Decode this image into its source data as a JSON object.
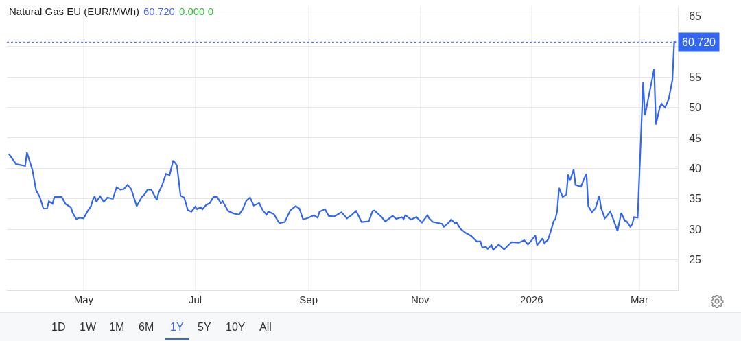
{
  "chart_data": {
    "type": "line",
    "title": "Natural Gas EU (EUR/MWh)",
    "annotations": [
      "60.720",
      "0.000 0",
      "1D",
      "1W",
      "1M",
      "6M",
      "1Y",
      "5Y",
      "10Y",
      "All"
    ],
    "x": [
      "2025-03-21",
      "2025-03-22",
      "2025-03-25",
      "2025-03-30",
      "2025-03-31",
      "2025-04-03",
      "2025-04-05",
      "2025-04-07",
      "2025-04-09",
      "2025-04-11",
      "2025-04-12",
      "2025-04-14",
      "2025-04-15",
      "2025-04-19",
      "2025-04-21",
      "2025-04-24",
      "2025-04-25",
      "2025-04-27",
      "2025-04-29",
      "2025-05-01",
      "2025-05-03",
      "2025-05-05",
      "2025-05-06",
      "2025-05-07",
      "2025-05-08",
      "2025-05-10",
      "2025-05-12",
      "2025-05-14",
      "2025-05-17",
      "2025-05-19",
      "2025-05-21",
      "2025-05-23",
      "2025-05-25",
      "2025-05-27",
      "2025-05-30",
      "2025-06-02",
      "2025-06-03",
      "2025-06-05",
      "2025-06-07",
      "2025-06-10",
      "2025-06-11",
      "2025-06-13",
      "2025-06-15",
      "2025-06-17",
      "2025-06-19",
      "2025-06-21",
      "2025-06-23",
      "2025-06-25",
      "2025-06-27",
      "2025-06-29",
      "2025-07-01",
      "2025-07-02",
      "2025-07-04",
      "2025-07-05",
      "2025-07-07",
      "2025-07-09",
      "2025-07-11",
      "2025-07-13",
      "2025-07-15",
      "2025-07-16",
      "2025-07-19",
      "2025-07-22",
      "2025-07-25",
      "2025-07-27",
      "2025-07-29",
      "2025-07-31",
      "2025-08-02",
      "2025-08-05",
      "2025-08-07",
      "2025-08-09",
      "2025-08-10",
      "2025-08-13",
      "2025-08-16",
      "2025-08-19",
      "2025-08-22",
      "2025-08-25",
      "2025-08-27",
      "2025-08-29",
      "2025-09-01",
      "2025-09-04",
      "2025-09-06",
      "2025-09-07",
      "2025-09-10",
      "2025-09-12",
      "2025-09-15",
      "2025-09-19",
      "2025-09-22",
      "2025-09-24",
      "2025-09-27",
      "2025-09-30",
      "2025-10-04",
      "2025-10-06",
      "2025-10-07",
      "2025-10-11",
      "2025-10-13",
      "2025-10-17",
      "2025-10-19",
      "2025-10-22",
      "2025-10-23",
      "2025-10-24",
      "2025-10-27",
      "2025-10-30",
      "2025-11-02",
      "2025-11-05",
      "2025-11-06",
      "2025-11-08",
      "2025-11-13",
      "2025-11-14",
      "2025-11-17",
      "2025-11-18",
      "2025-11-20",
      "2025-11-21",
      "2025-11-23",
      "2025-11-26",
      "2025-11-29",
      "2025-12-02",
      "2025-12-04",
      "2025-12-05",
      "2025-12-07",
      "2025-12-08",
      "2025-12-10",
      "2025-12-11",
      "2025-12-14",
      "2025-12-17",
      "2025-12-21",
      "2025-12-25",
      "2025-12-28",
      "2025-12-30",
      "2026-01-01",
      "2026-01-03",
      "2026-01-04",
      "2026-01-07",
      "2026-01-08",
      "2026-01-10",
      "2026-01-12",
      "2026-01-13",
      "2026-01-14",
      "2026-01-15",
      "2026-01-16",
      "2026-01-18",
      "2026-01-20",
      "2026-01-21",
      "2026-01-22",
      "2026-01-24",
      "2026-01-25",
      "2026-01-28",
      "2026-01-30",
      "2026-01-31",
      "2026-02-01",
      "2026-02-03",
      "2026-02-05",
      "2026-02-07",
      "2026-02-08",
      "2026-02-10",
      "2026-02-11",
      "2026-02-13",
      "2026-02-14",
      "2026-02-17",
      "2026-02-19",
      "2026-02-21",
      "2026-02-22",
      "2026-02-24",
      "2026-02-25",
      "2026-02-26",
      "2026-02-28",
      "2026-03-03",
      "2026-03-04",
      "2026-03-09",
      "2026-03-10",
      "2026-03-12",
      "2026-03-13",
      "2026-03-15",
      "2026-03-17",
      "2026-03-19",
      "2026-03-20",
      "2026-03-21"
    ],
    "series": [
      {
        "color": "#3266f5",
        "values": [
          42.4,
          42.0,
          40.7,
          40.4,
          42.6,
          39.7,
          36.4,
          35.3,
          33.4,
          33.4,
          34.6,
          34.2,
          35.3,
          35.3,
          34.2,
          33.6,
          32.7,
          31.7,
          31.9,
          31.8,
          32.9,
          33.8,
          34.8,
          35.4,
          34.5,
          35.4,
          34.5,
          35.2,
          35.0,
          36.9,
          36.5,
          36.6,
          37.3,
          36.6,
          33.8,
          35.4,
          35.6,
          36.5,
          36.5,
          34.8,
          36.0,
          37.3,
          39.1,
          38.9,
          41.3,
          40.5,
          35.5,
          35.2,
          33.1,
          32.9,
          33.7,
          33.3,
          33.6,
          33.3,
          34.0,
          34.3,
          35.3,
          35.3,
          34.3,
          34.6,
          33.0,
          32.6,
          32.4,
          33.3,
          34.7,
          35.2,
          33.9,
          34.3,
          33.1,
          32.4,
          32.9,
          32.5,
          31.0,
          31.2,
          33.1,
          33.8,
          33.4,
          31.6,
          31.9,
          32.3,
          31.9,
          32.9,
          33.3,
          32.2,
          32.1,
          32.8,
          31.8,
          32.2,
          33.0,
          31.2,
          31.3,
          33.0,
          33.1,
          32.0,
          31.3,
          32.2,
          31.7,
          32.0,
          31.7,
          32.3,
          31.6,
          32.0,
          31.1,
          32.3,
          31.8,
          31.2,
          30.9,
          30.4,
          31.2,
          31.6,
          31.0,
          31.1,
          30.1,
          29.4,
          28.9,
          28.0,
          28.0,
          27.0,
          27.1,
          26.8,
          27.4,
          26.6,
          27.5,
          26.7,
          27.9,
          27.8,
          28.2,
          27.5,
          28.2,
          29.0,
          27.4,
          28.5,
          27.7,
          28.3,
          30.2,
          31.3,
          31.7,
          33.0,
          36.8,
          35.3,
          35.7,
          39.0,
          38.0,
          39.8,
          37.3,
          37.0,
          38.5,
          39.1,
          33.8,
          32.8,
          33.5,
          35.5,
          33.5,
          31.8,
          32.1,
          32.9,
          32.2,
          29.7,
          32.7,
          31.4,
          31.3,
          30.4,
          30.8,
          32.0,
          31.9,
          54.1,
          48.7,
          56.3,
          47.2,
          49.9,
          50.6,
          50.0,
          51.4,
          54.5,
          60.72,
          60.72
        ]
      }
    ],
    "xlim": [
      "2025-03-20",
      "2026-03-22"
    ],
    "xticks": [
      {
        "value": "2025-05-01",
        "label": "May"
      },
      {
        "value": "2025-07-01",
        "label": "Jul"
      },
      {
        "value": "2025-09-01",
        "label": "Sep"
      },
      {
        "value": "2025-11-01",
        "label": "Nov"
      },
      {
        "value": "2026-01-01",
        "label": "2026"
      },
      {
        "value": "2026-03-01",
        "label": "Mar"
      }
    ],
    "ylim": [
      20,
      66.5
    ],
    "yticks": [
      25,
      30,
      35,
      40,
      45,
      50,
      55,
      {
        "value": 60,
        "label": null
      },
      65
    ],
    "ref_lines": [
      {
        "axis": "y",
        "value": 60.72,
        "label": "60.720",
        "color": "#3266f5",
        "line_style": "dotted"
      }
    ],
    "grid": true,
    "legend": false,
    "line_style": "solid",
    "marker": "none"
  }
}
